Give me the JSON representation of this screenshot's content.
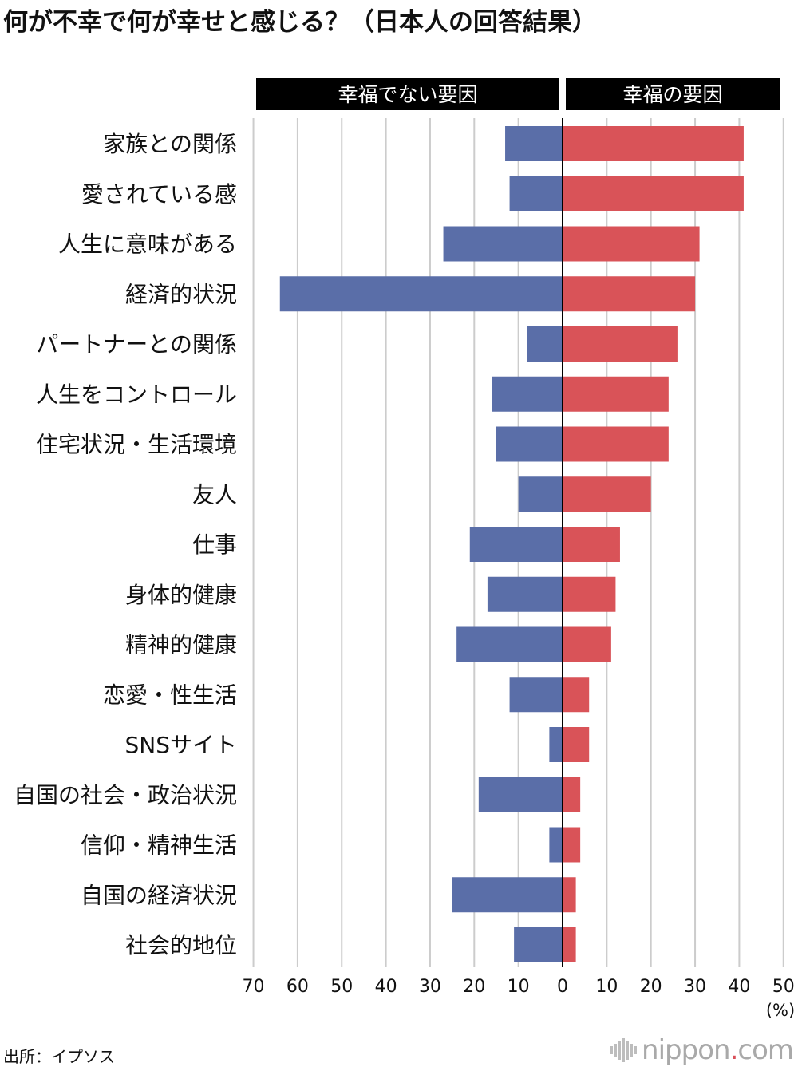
{
  "title": "何が不幸で何が幸せと感じる？（日本人の回答結果）",
  "source": "出所：イプソス",
  "logo": {
    "before_dot": "nippon",
    "dot": ".",
    "after_dot": "com"
  },
  "colors": {
    "unhappy": "#5a6ea8",
    "happy": "#d95358",
    "grid": "#cccccc",
    "header_bg": "#000000",
    "header_text": "#ffffff"
  },
  "chart_data": {
    "type": "bar",
    "orientation": "horizontal-diverging",
    "headers": {
      "left": "幸福でない要因",
      "right": "幸福の要因"
    },
    "unit_label": "(%)",
    "x_left_ticks": [
      "70",
      "60",
      "50",
      "40",
      "30",
      "20",
      "10"
    ],
    "x_center_tick": "0",
    "x_right_ticks": [
      "10",
      "20",
      "30",
      "40",
      "50"
    ],
    "xlim_left": [
      0,
      70
    ],
    "xlim_right": [
      0,
      50
    ],
    "grid": true,
    "categories": [
      "家族との関係",
      "愛されている感",
      "人生に意味がある",
      "経済的状況",
      "パートナーとの関係",
      "人生をコントロール",
      "住宅状況・生活環境",
      "友人",
      "仕事",
      "身体的健康",
      "精神的健康",
      "恋愛・性生活",
      "SNSサイト",
      "自国の社会・政治状況",
      "信仰・精神生活",
      "自国の経済状況",
      "社会的地位"
    ],
    "series": [
      {
        "name": "幸福でない要因",
        "side": "left",
        "values": [
          13,
          12,
          27,
          64,
          8,
          16,
          15,
          10,
          21,
          17,
          24,
          12,
          3,
          19,
          3,
          25,
          11
        ]
      },
      {
        "name": "幸福の要因",
        "side": "right",
        "values": [
          41,
          41,
          31,
          30,
          26,
          24,
          24,
          20,
          13,
          12,
          11,
          6,
          6,
          4,
          4,
          3,
          3
        ]
      }
    ]
  }
}
